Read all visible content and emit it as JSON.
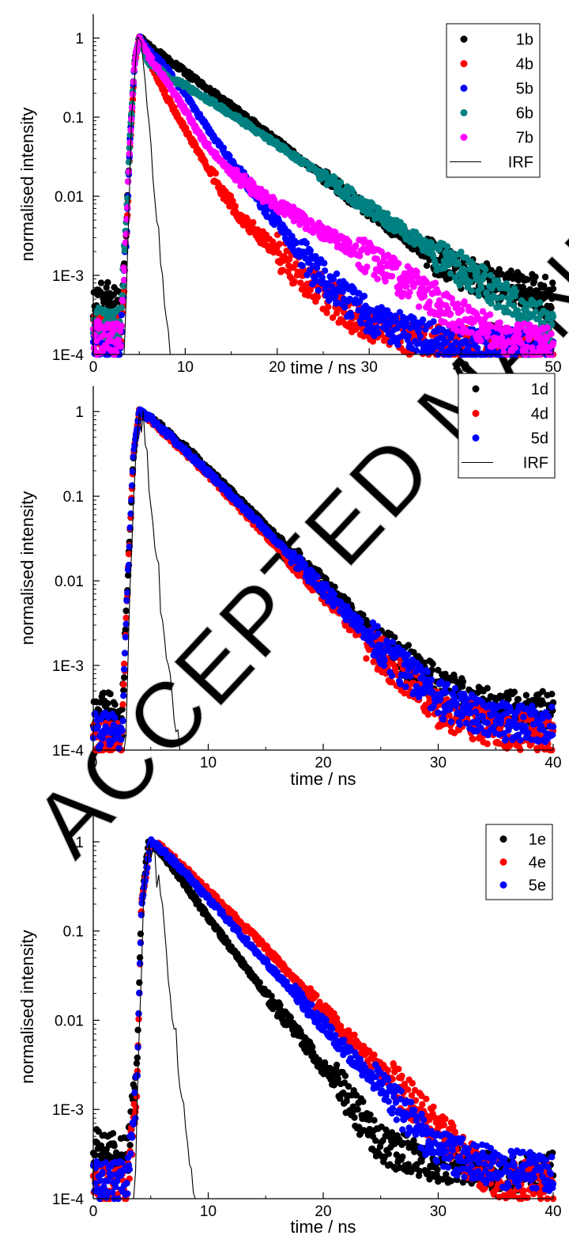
{
  "watermark": "ACCEPTED MANUSCRIPT",
  "chart_data": [
    {
      "type": "scatter",
      "xlabel": "time / ns",
      "ylabel": "normalised intensity",
      "xlim": [
        0,
        50
      ],
      "xticks": [
        0,
        10,
        20,
        30,
        40,
        50
      ],
      "x_tick_labels": [
        "0",
        "10",
        "20",
        "30",
        "40",
        "50"
      ],
      "yscale": "log",
      "ylim": [
        0.0001,
        2
      ],
      "yticks": [
        0.0001,
        0.001,
        0.01,
        0.1,
        1
      ],
      "y_tick_labels": [
        "1E-4",
        "1E-3",
        "0.01",
        "0.1",
        "1"
      ],
      "legend_position": "top-right",
      "grid": false,
      "series": [
        {
          "name": "1b",
          "color": "#000000",
          "marker": "dot",
          "points": [
            [
              0,
              0.0005
            ],
            [
              2,
              0.0005
            ],
            [
              3,
              0.0004
            ],
            [
              3.6,
              0.004
            ],
            [
              4,
              0.05
            ],
            [
              4.5,
              0.5
            ],
            [
              5,
              1
            ],
            [
              6,
              0.8
            ],
            [
              8,
              0.55
            ],
            [
              10,
              0.37
            ],
            [
              15,
              0.14
            ],
            [
              20,
              0.05
            ],
            [
              25,
              0.018
            ],
            [
              30,
              0.0065
            ],
            [
              35,
              0.0024
            ],
            [
              40,
              0.0011
            ],
            [
              45,
              0.0007
            ],
            [
              50,
              0.0006
            ]
          ]
        },
        {
          "name": "4b",
          "color": "#ff0000",
          "marker": "dot",
          "points": [
            [
              0,
              0.0002
            ],
            [
              3,
              0.0002
            ],
            [
              3.6,
              0.003
            ],
            [
              4,
              0.04
            ],
            [
              4.5,
              0.5
            ],
            [
              5,
              1
            ],
            [
              6,
              0.55
            ],
            [
              8,
              0.18
            ],
            [
              10,
              0.07
            ],
            [
              12,
              0.028
            ],
            [
              14,
              0.012
            ],
            [
              16,
              0.0055
            ],
            [
              18,
              0.0033
            ],
            [
              20,
              0.002
            ],
            [
              22,
              0.0012
            ],
            [
              25,
              0.0006
            ],
            [
              28,
              0.0003
            ],
            [
              30,
              0.00025
            ],
            [
              35,
              0.00015
            ],
            [
              40,
              0.00013
            ],
            [
              50,
              0.00012
            ]
          ]
        },
        {
          "name": "5b",
          "color": "#0000ff",
          "marker": "dot",
          "points": [
            [
              0,
              0.00013
            ],
            [
              3,
              0.00013
            ],
            [
              3.6,
              0.003
            ],
            [
              4,
              0.05
            ],
            [
              4.5,
              0.5
            ],
            [
              5,
              1
            ],
            [
              6,
              0.7
            ],
            [
              8,
              0.4
            ],
            [
              10,
              0.2
            ],
            [
              12,
              0.085
            ],
            [
              15,
              0.028
            ],
            [
              18,
              0.009
            ],
            [
              20,
              0.0045
            ],
            [
              22,
              0.0022
            ],
            [
              25,
              0.0009
            ],
            [
              28,
              0.00045
            ],
            [
              30,
              0.0003
            ],
            [
              35,
              0.00018
            ],
            [
              40,
              0.00013
            ],
            [
              50,
              0.00012
            ]
          ]
        },
        {
          "name": "6b",
          "color": "#008080",
          "marker": "dot",
          "points": [
            [
              0,
              0.00025
            ],
            [
              3,
              0.00025
            ],
            [
              3.6,
              0.005
            ],
            [
              4,
              0.06
            ],
            [
              4.5,
              0.5
            ],
            [
              5,
              1
            ],
            [
              6,
              0.5
            ],
            [
              8,
              0.33
            ],
            [
              10,
              0.25
            ],
            [
              15,
              0.11
            ],
            [
              20,
              0.045
            ],
            [
              25,
              0.018
            ],
            [
              30,
              0.007
            ],
            [
              35,
              0.0029
            ],
            [
              40,
              0.0012
            ],
            [
              45,
              0.0005
            ],
            [
              50,
              0.00022
            ]
          ]
        },
        {
          "name": "7b",
          "color": "#ff00ff",
          "marker": "dot",
          "points": [
            [
              0,
              0.00016
            ],
            [
              3,
              0.00016
            ],
            [
              3.6,
              0.004
            ],
            [
              4,
              0.05
            ],
            [
              4.5,
              0.5
            ],
            [
              5,
              1
            ],
            [
              6,
              0.6
            ],
            [
              8,
              0.28
            ],
            [
              10,
              0.12
            ],
            [
              12,
              0.05
            ],
            [
              15,
              0.02
            ],
            [
              18,
              0.011
            ],
            [
              20,
              0.008
            ],
            [
              25,
              0.0035
            ],
            [
              30,
              0.0016
            ],
            [
              35,
              0.0007
            ],
            [
              40,
              0.0003
            ],
            [
              45,
              0.00016
            ],
            [
              50,
              0.00013
            ]
          ]
        },
        {
          "name": "IRF",
          "color": "#000000",
          "marker": "line",
          "points": [
            [
              0,
              0.0001
            ],
            [
              3.4,
              0.0001
            ],
            [
              3.8,
              0.004
            ],
            [
              4.2,
              0.1
            ],
            [
              4.6,
              0.6
            ],
            [
              5,
              1
            ],
            [
              5.5,
              0.5
            ],
            [
              6,
              0.09
            ],
            [
              6.5,
              0.018
            ],
            [
              7,
              0.004
            ],
            [
              7.5,
              0.0009
            ],
            [
              8,
              0.0002
            ],
            [
              8.5,
              0.0001
            ],
            [
              50,
              0.0001
            ]
          ]
        }
      ]
    },
    {
      "type": "scatter",
      "xlabel": "time / ns",
      "ylabel": "normalised intensity",
      "xlim": [
        0,
        40
      ],
      "xticks": [
        0,
        10,
        20,
        30,
        40
      ],
      "x_tick_labels": [
        "0",
        "10",
        "20",
        "30",
        "40"
      ],
      "yscale": "log",
      "ylim": [
        0.0001,
        2
      ],
      "yticks": [
        0.0001,
        0.001,
        0.01,
        0.1,
        1
      ],
      "y_tick_labels": [
        "1E-4",
        "1E-3",
        "0.01",
        "0.1",
        "1"
      ],
      "legend_position": "top-right",
      "grid": false,
      "series": [
        {
          "name": "1d",
          "color": "#000000",
          "marker": "dot",
          "points": [
            [
              0,
              0.0003
            ],
            [
              2.5,
              0.0003
            ],
            [
              3,
              0.01
            ],
            [
              3.5,
              0.3
            ],
            [
              4,
              1
            ],
            [
              5,
              0.85
            ],
            [
              8,
              0.38
            ],
            [
              10,
              0.21
            ],
            [
              15,
              0.045
            ],
            [
              20,
              0.0095
            ],
            [
              25,
              0.002
            ],
            [
              28,
              0.0009
            ],
            [
              30,
              0.0006
            ],
            [
              35,
              0.0003
            ],
            [
              40,
              0.0003
            ]
          ]
        },
        {
          "name": "4d",
          "color": "#ff0000",
          "marker": "dot",
          "points": [
            [
              0,
              0.00013
            ],
            [
              2.5,
              0.00013
            ],
            [
              3,
              0.01
            ],
            [
              3.5,
              0.3
            ],
            [
              4,
              1
            ],
            [
              5,
              0.8
            ],
            [
              8,
              0.33
            ],
            [
              10,
              0.18
            ],
            [
              15,
              0.035
            ],
            [
              20,
              0.0068
            ],
            [
              25,
              0.0013
            ],
            [
              28,
              0.0006
            ],
            [
              30,
              0.0003
            ],
            [
              35,
              0.00018
            ],
            [
              40,
              0.00015
            ]
          ]
        },
        {
          "name": "5d",
          "color": "#0000ff",
          "marker": "dot",
          "points": [
            [
              0,
              0.00017
            ],
            [
              2.5,
              0.00017
            ],
            [
              3,
              0.01
            ],
            [
              3.5,
              0.3
            ],
            [
              4,
              1
            ],
            [
              5,
              0.82
            ],
            [
              8,
              0.35
            ],
            [
              10,
              0.19
            ],
            [
              15,
              0.04
            ],
            [
              20,
              0.008
            ],
            [
              25,
              0.0016
            ],
            [
              28,
              0.0007
            ],
            [
              30,
              0.0004
            ],
            [
              35,
              0.00022
            ],
            [
              40,
              0.0002
            ]
          ]
        },
        {
          "name": "IRF",
          "color": "#000000",
          "marker": "line",
          "points": [
            [
              0,
              0.0001
            ],
            [
              2.8,
              0.0001
            ],
            [
              3.2,
              0.01
            ],
            [
              3.6,
              0.3
            ],
            [
              4,
              1
            ],
            [
              4.5,
              0.6
            ],
            [
              5,
              0.1
            ],
            [
              5.5,
              0.02
            ],
            [
              6,
              0.004
            ],
            [
              6.5,
              0.001
            ],
            [
              7,
              0.0003
            ],
            [
              7.5,
              0.0001
            ],
            [
              40,
              0.0001
            ]
          ]
        }
      ]
    },
    {
      "type": "scatter",
      "xlabel": "time / ns",
      "ylabel": "normalised intensity",
      "xlim": [
        0,
        40
      ],
      "xticks": [
        0,
        10,
        20,
        30,
        40
      ],
      "x_tick_labels": [
        "0",
        "10",
        "20",
        "30",
        "40"
      ],
      "yscale": "log",
      "ylim": [
        0.0001,
        2
      ],
      "yticks": [
        0.0001,
        0.001,
        0.01,
        0.1,
        1
      ],
      "y_tick_labels": [
        "1E-4",
        "1E-3",
        "0.01",
        "0.1",
        "1"
      ],
      "legend_position": "top-right",
      "grid": false,
      "series": [
        {
          "name": "1e",
          "color": "#000000",
          "marker": "dot",
          "points": [
            [
              0,
              0.0004
            ],
            [
              3,
              0.0003
            ],
            [
              3.8,
              0.003
            ],
            [
              4.2,
              0.2
            ],
            [
              4.8,
              1
            ],
            [
              6,
              0.75
            ],
            [
              8,
              0.33
            ],
            [
              10,
              0.14
            ],
            [
              15,
              0.02
            ],
            [
              20,
              0.003
            ],
            [
              22,
              0.0014
            ],
            [
              25,
              0.0004
            ],
            [
              30,
              0.00025
            ],
            [
              35,
              0.0002
            ],
            [
              40,
              0.0002
            ]
          ]
        },
        {
          "name": "4e",
          "color": "#ff0000",
          "marker": "dot",
          "points": [
            [
              0,
              0.00015
            ],
            [
              3,
              0.00015
            ],
            [
              3.8,
              0.002
            ],
            [
              4.2,
              0.2
            ],
            [
              5,
              1
            ],
            [
              6,
              0.85
            ],
            [
              8,
              0.5
            ],
            [
              10,
              0.28
            ],
            [
              15,
              0.065
            ],
            [
              20,
              0.013
            ],
            [
              25,
              0.0028
            ],
            [
              28,
              0.0011
            ],
            [
              30,
              0.0006
            ],
            [
              33,
              0.00025
            ],
            [
              35,
              0.00017
            ],
            [
              40,
              0.00015
            ]
          ]
        },
        {
          "name": "5e",
          "color": "#0000ff",
          "marker": "dot",
          "points": [
            [
              0,
              0.00016
            ],
            [
              3,
              0.00016
            ],
            [
              3.8,
              0.002
            ],
            [
              4.2,
              0.2
            ],
            [
              5,
              1
            ],
            [
              6,
              0.8
            ],
            [
              8,
              0.45
            ],
            [
              10,
              0.23
            ],
            [
              15,
              0.045
            ],
            [
              20,
              0.009
            ],
            [
              25,
              0.0017
            ],
            [
              28,
              0.0007
            ],
            [
              30,
              0.00035
            ],
            [
              35,
              0.00022
            ],
            [
              40,
              0.0002
            ]
          ]
        },
        {
          "name": "",
          "color": "#000000",
          "marker": "line",
          "points": [
            [
              0,
              0.0001
            ],
            [
              3.6,
              0.0001
            ],
            [
              4,
              0.01
            ],
            [
              4.4,
              0.3
            ],
            [
              4.8,
              1
            ],
            [
              5.4,
              0.6
            ],
            [
              6,
              0.15
            ],
            [
              6.6,
              0.03
            ],
            [
              7.2,
              0.006
            ],
            [
              7.8,
              0.0012
            ],
            [
              8.4,
              0.0003
            ],
            [
              9,
              0.0001
            ],
            [
              40,
              0.0001
            ]
          ]
        }
      ]
    }
  ]
}
